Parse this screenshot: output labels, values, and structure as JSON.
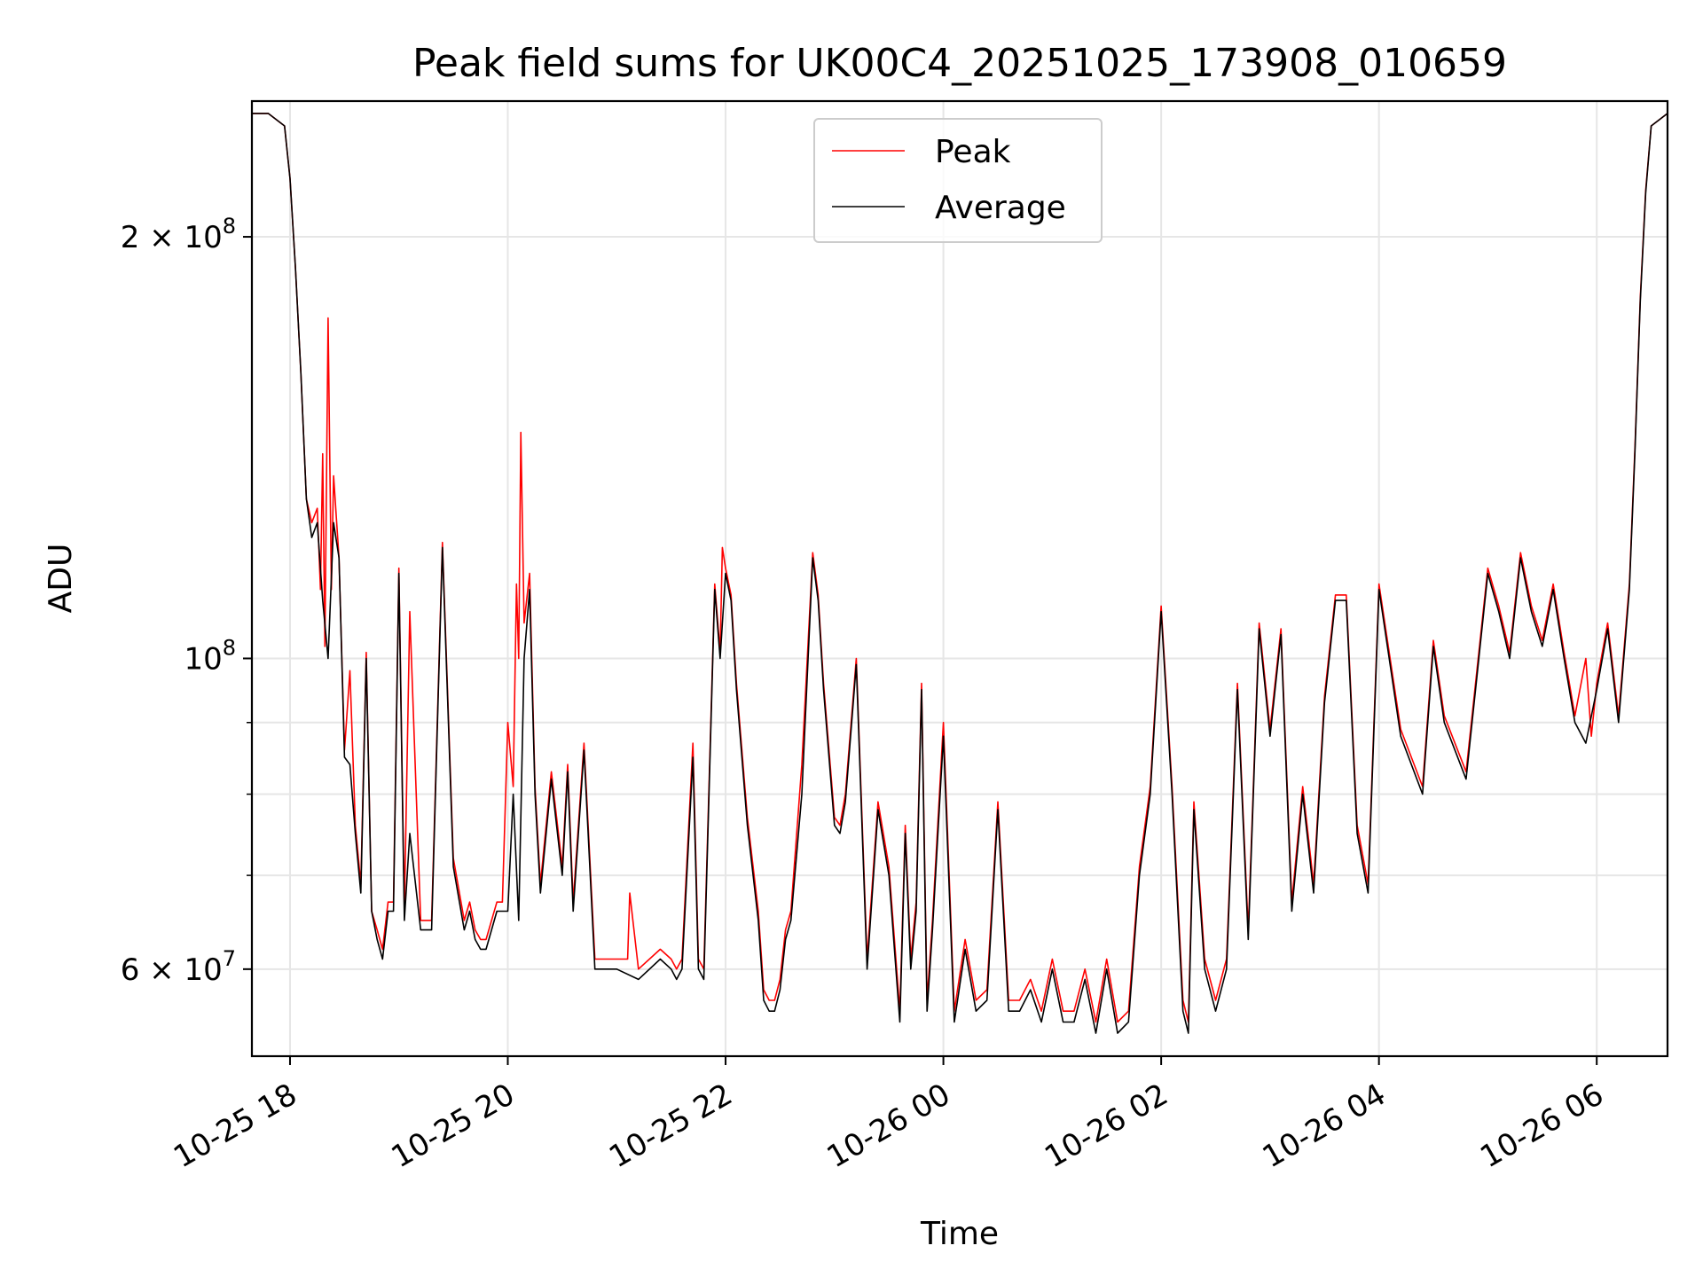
{
  "chart_data": {
    "type": "line",
    "title": "Peak field sums for UK00C4_20251025_173908_010659",
    "xlabel": "Time",
    "ylabel": "ADU",
    "yscale": "log",
    "ylim": [
      52000000,
      250000000
    ],
    "xlim_hours": [
      -0.35,
      12.65
    ],
    "grid": true,
    "legend_position": "top-center",
    "x_ticks": [
      {
        "h": 0,
        "label": "10-25 18"
      },
      {
        "h": 2,
        "label": "10-25 20"
      },
      {
        "h": 4,
        "label": "10-25 22"
      },
      {
        "h": 6,
        "label": "10-26 00"
      },
      {
        "h": 8,
        "label": "10-26 02"
      },
      {
        "h": 10,
        "label": "10-26 04"
      },
      {
        "h": 12,
        "label": "10-26 06"
      }
    ],
    "y_ticks": [
      {
        "v": 60000000,
        "base": "6 × 10",
        "exp": "7"
      },
      {
        "v": 100000000,
        "base": "10",
        "exp": "8"
      },
      {
        "v": 200000000,
        "base": "2 × 10",
        "exp": "8"
      }
    ],
    "y_minor_ticks": [
      70000000,
      80000000,
      90000000
    ],
    "x_reference": "hours since 10-25 18:00",
    "series": [
      {
        "name": "Average",
        "color": "#000000",
        "x": [
          -0.35,
          -0.2,
          -0.05,
          0.0,
          0.05,
          0.1,
          0.15,
          0.2,
          0.25,
          0.3,
          0.35,
          0.4,
          0.45,
          0.5,
          0.55,
          0.6,
          0.65,
          0.7,
          0.75,
          0.8,
          0.85,
          0.9,
          0.95,
          1.0,
          1.05,
          1.1,
          1.2,
          1.3,
          1.4,
          1.5,
          1.6,
          1.65,
          1.7,
          1.75,
          1.8,
          1.9,
          2.0,
          2.05,
          2.1,
          2.15,
          2.2,
          2.25,
          2.3,
          2.4,
          2.5,
          2.55,
          2.6,
          2.7,
          2.8,
          2.9,
          3.0,
          3.2,
          3.4,
          3.5,
          3.55,
          3.6,
          3.7,
          3.75,
          3.8,
          3.9,
          3.95,
          4.0,
          4.05,
          4.1,
          4.2,
          4.3,
          4.35,
          4.4,
          4.45,
          4.5,
          4.55,
          4.6,
          4.7,
          4.8,
          4.85,
          4.9,
          5.0,
          5.05,
          5.1,
          5.2,
          5.3,
          5.4,
          5.5,
          5.6,
          5.65,
          5.7,
          5.75,
          5.8,
          5.85,
          5.9,
          6.0,
          6.1,
          6.2,
          6.3,
          6.4,
          6.5,
          6.6,
          6.7,
          6.8,
          6.9,
          7.0,
          7.1,
          7.2,
          7.3,
          7.4,
          7.5,
          7.6,
          7.7,
          7.8,
          7.9,
          8.0,
          8.1,
          8.2,
          8.25,
          8.3,
          8.4,
          8.5,
          8.6,
          8.7,
          8.8,
          8.9,
          9.0,
          9.1,
          9.2,
          9.3,
          9.4,
          9.5,
          9.6,
          9.7,
          9.8,
          9.9,
          10.0,
          10.2,
          10.4,
          10.5,
          10.6,
          10.8,
          11.0,
          11.1,
          11.2,
          11.3,
          11.4,
          11.5,
          11.6,
          11.7,
          11.8,
          11.9,
          12.0,
          12.1,
          12.2,
          12.3,
          12.35,
          12.4,
          12.45,
          12.5,
          12.65
        ],
        "y": [
          245000000,
          245000000,
          240000000,
          220000000,
          190000000,
          160000000,
          130000000,
          122000000,
          125000000,
          110000000,
          100000000,
          125000000,
          118000000,
          85000000,
          84000000,
          75000000,
          68000000,
          100000000,
          66000000,
          63000000,
          61000000,
          66000000,
          66000000,
          115000000,
          65000000,
          75000000,
          64000000,
          64000000,
          120000000,
          71000000,
          64000000,
          66000000,
          63000000,
          62000000,
          62000000,
          66000000,
          66000000,
          80000000,
          65000000,
          100000000,
          112000000,
          80000000,
          68000000,
          82000000,
          70000000,
          83000000,
          66000000,
          86000000,
          60000000,
          60000000,
          60000000,
          59000000,
          61000000,
          60000000,
          59000000,
          60000000,
          85000000,
          60000000,
          59000000,
          112000000,
          100000000,
          115000000,
          110000000,
          95000000,
          76000000,
          65000000,
          57000000,
          56000000,
          56000000,
          58000000,
          63000000,
          65000000,
          80000000,
          118000000,
          110000000,
          95000000,
          76000000,
          75000000,
          79000000,
          99000000,
          60000000,
          78000000,
          70000000,
          55000000,
          75000000,
          60000000,
          66000000,
          95000000,
          56000000,
          64000000,
          88000000,
          55000000,
          62000000,
          56000000,
          57000000,
          78000000,
          56000000,
          56000000,
          58000000,
          55000000,
          60000000,
          55000000,
          55000000,
          59000000,
          54000000,
          60000000,
          54000000,
          55000000,
          70000000,
          80000000,
          108000000,
          80000000,
          56000000,
          54000000,
          78000000,
          60000000,
          56000000,
          60000000,
          95000000,
          63000000,
          105000000,
          88000000,
          104000000,
          66000000,
          80000000,
          68000000,
          93000000,
          110000000,
          110000000,
          75000000,
          68000000,
          112000000,
          88000000,
          80000000,
          102000000,
          90000000,
          82000000,
          115000000,
          108000000,
          100000000,
          118000000,
          108000000,
          102000000,
          112000000,
          100000000,
          90000000,
          87000000,
          95000000,
          105000000,
          90000000,
          112000000,
          140000000,
          180000000,
          215000000,
          240000000,
          245000000
        ]
      },
      {
        "name": "Peak",
        "color": "#ff0000",
        "x": [
          -0.35,
          -0.2,
          -0.05,
          0.0,
          0.05,
          0.1,
          0.15,
          0.2,
          0.25,
          0.28,
          0.3,
          0.32,
          0.35,
          0.38,
          0.4,
          0.45,
          0.5,
          0.55,
          0.6,
          0.65,
          0.7,
          0.75,
          0.8,
          0.85,
          0.9,
          0.95,
          1.0,
          1.05,
          1.1,
          1.2,
          1.3,
          1.4,
          1.5,
          1.6,
          1.65,
          1.7,
          1.75,
          1.8,
          1.9,
          1.95,
          2.0,
          2.05,
          2.08,
          2.1,
          2.12,
          2.15,
          2.2,
          2.25,
          2.3,
          2.4,
          2.5,
          2.55,
          2.6,
          2.7,
          2.8,
          2.9,
          3.0,
          3.1,
          3.12,
          3.2,
          3.4,
          3.5,
          3.55,
          3.6,
          3.7,
          3.75,
          3.8,
          3.9,
          3.95,
          3.97,
          4.0,
          4.05,
          4.1,
          4.2,
          4.3,
          4.35,
          4.4,
          4.45,
          4.5,
          4.55,
          4.6,
          4.7,
          4.8,
          4.85,
          4.9,
          5.0,
          5.05,
          5.1,
          5.2,
          5.3,
          5.4,
          5.5,
          5.6,
          5.65,
          5.7,
          5.75,
          5.8,
          5.85,
          5.9,
          6.0,
          6.1,
          6.2,
          6.3,
          6.4,
          6.5,
          6.6,
          6.7,
          6.8,
          6.9,
          7.0,
          7.1,
          7.2,
          7.3,
          7.4,
          7.5,
          7.6,
          7.7,
          7.8,
          7.9,
          8.0,
          8.1,
          8.2,
          8.25,
          8.3,
          8.4,
          8.5,
          8.6,
          8.7,
          8.8,
          8.9,
          9.0,
          9.1,
          9.2,
          9.3,
          9.4,
          9.5,
          9.6,
          9.7,
          9.8,
          9.9,
          10.0,
          10.2,
          10.4,
          10.5,
          10.6,
          10.8,
          11.0,
          11.1,
          11.2,
          11.3,
          11.4,
          11.5,
          11.6,
          11.7,
          11.8,
          11.9,
          11.95,
          12.0,
          12.1,
          12.2,
          12.3,
          12.35,
          12.4,
          12.45,
          12.5,
          12.65
        ],
        "y": [
          245000000,
          245000000,
          240000000,
          220000000,
          190000000,
          160000000,
          130000000,
          125000000,
          128000000,
          112000000,
          140000000,
          102000000,
          175000000,
          112000000,
          135000000,
          118000000,
          86000000,
          98000000,
          76000000,
          69000000,
          101000000,
          66000000,
          64000000,
          62000000,
          67000000,
          67000000,
          116000000,
          66000000,
          108000000,
          65000000,
          65000000,
          121000000,
          72000000,
          65000000,
          67000000,
          64000000,
          63000000,
          63000000,
          67000000,
          67000000,
          90000000,
          81000000,
          113000000,
          100000000,
          145000000,
          106000000,
          115000000,
          81000000,
          69000000,
          83000000,
          71000000,
          84000000,
          67000000,
          87000000,
          61000000,
          61000000,
          61000000,
          61000000,
          68000000,
          60000000,
          62000000,
          61000000,
          60000000,
          61000000,
          87000000,
          61000000,
          60000000,
          113000000,
          101000000,
          120000000,
          116000000,
          111000000,
          96000000,
          77000000,
          66000000,
          58000000,
          57000000,
          57000000,
          59000000,
          64000000,
          66000000,
          84000000,
          119000000,
          111000000,
          96000000,
          77000000,
          76000000,
          80000000,
          100000000,
          61000000,
          79000000,
          71000000,
          56000000,
          76000000,
          61000000,
          67000000,
          96000000,
          57000000,
          65000000,
          90000000,
          56000000,
          63000000,
          57000000,
          58000000,
          79000000,
          57000000,
          57000000,
          59000000,
          56000000,
          61000000,
          56000000,
          56000000,
          60000000,
          55000000,
          61000000,
          55000000,
          56000000,
          71000000,
          81000000,
          109000000,
          81000000,
          57000000,
          55000000,
          79000000,
          61000000,
          57000000,
          61000000,
          96000000,
          64000000,
          106000000,
          89000000,
          105000000,
          67000000,
          81000000,
          69000000,
          94000000,
          111000000,
          111000000,
          76000000,
          69000000,
          113000000,
          89000000,
          81000000,
          103000000,
          91000000,
          83000000,
          116000000,
          109000000,
          101000000,
          119000000,
          109000000,
          103000000,
          113000000,
          101000000,
          91000000,
          100000000,
          88000000,
          96000000,
          106000000,
          91000000,
          113000000,
          141000000,
          181000000,
          216000000,
          240000000,
          245000000
        ]
      }
    ]
  }
}
